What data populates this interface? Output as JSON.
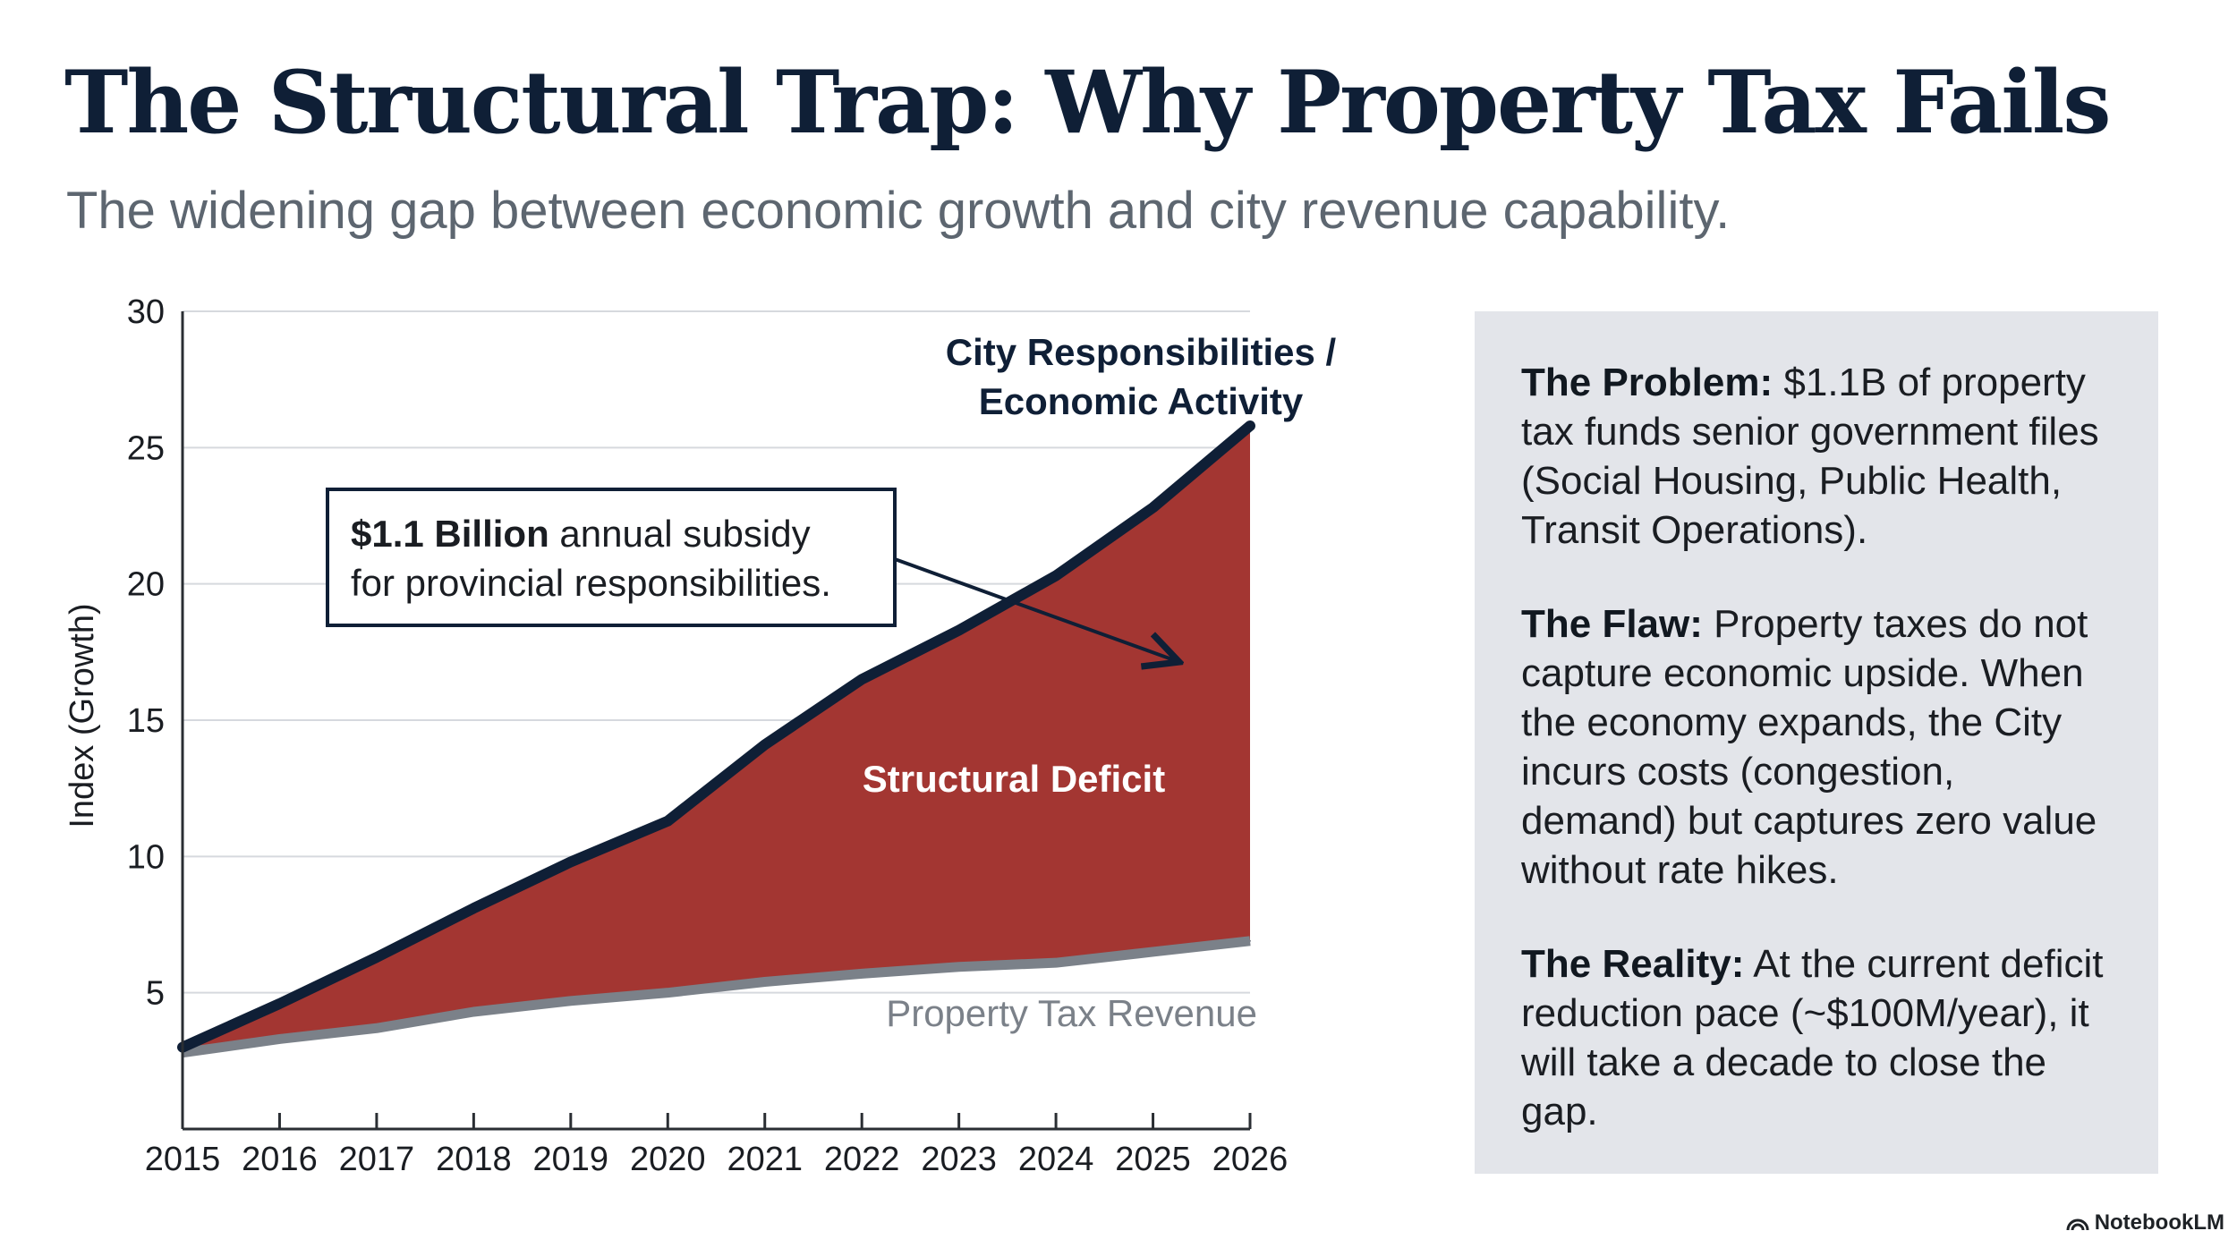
{
  "header": {
    "title": "The Structural Trap: Why Property Tax Fails",
    "subtitle": "The widening gap between economic growth and city revenue capability."
  },
  "chart_data": {
    "type": "area",
    "x": [
      2015,
      2016,
      2017,
      2018,
      2019,
      2020,
      2021,
      2022,
      2023,
      2024,
      2025,
      2026
    ],
    "series": [
      {
        "name": "City Responsibilities / Economic Activity",
        "values": [
          3,
          4.6,
          6.3,
          8.1,
          9.8,
          11.3,
          14.1,
          16.5,
          18.3,
          20.3,
          22.8,
          25.8
        ]
      },
      {
        "name": "Property Tax Revenue",
        "values": [
          2.8,
          3.3,
          3.7,
          4.3,
          4.7,
          5.0,
          5.4,
          5.7,
          5.95,
          6.1,
          6.5,
          6.9
        ]
      }
    ],
    "area_label": "Structural Deficit",
    "ylabel": "Index (Growth)",
    "xlabel": "",
    "ylim": [
      0,
      30
    ],
    "yticks": [
      5,
      10,
      15,
      20,
      25,
      30
    ],
    "grid": true,
    "annotation": {
      "bold": "$1.1 Billion",
      "rest_line1": " annual subsidy",
      "line2": "for provincial responsibilities."
    },
    "colors": {
      "gap": "#a33632",
      "top_line": "#0f1f36",
      "bottom_line": "#7b8189",
      "grid": "#d6d9de"
    }
  },
  "panel": {
    "problem": {
      "label": "The Problem:",
      "text": " $1.1B of property tax funds senior government files (Social Housing, Public Health, Transit Operations)."
    },
    "flaw": {
      "label": "The Flaw:",
      "text": " Property taxes do not capture economic upside. When the economy expands, the City incurs costs (congestion, demand) but captures zero value without rate hikes."
    },
    "reality": {
      "label": "The Reality:",
      "text": " At the current deficit reduction pace (~$100M/year), it will take a decade to close the gap."
    }
  },
  "brand": {
    "name": "NotebookLM",
    "icon": "notebooklm-logo-icon"
  }
}
